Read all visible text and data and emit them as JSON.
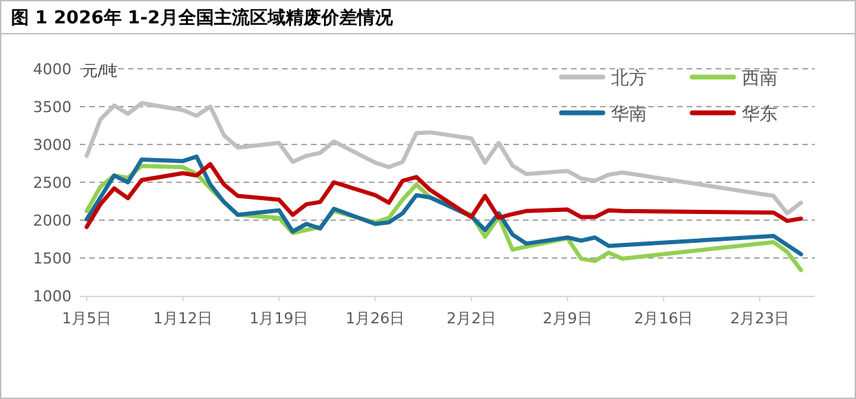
{
  "chart_data": {
    "type": "line",
    "title": "图 1 2026年 1-2月全国主流区域精废价差情况",
    "ylabel": "元/吨",
    "x": [
      "2026-01-05",
      "2026-01-06",
      "2026-01-07",
      "2026-01-08",
      "2026-01-09",
      "2026-01-12",
      "2026-01-13",
      "2026-01-14",
      "2026-01-15",
      "2026-01-16",
      "2026-01-19",
      "2026-01-20",
      "2026-01-21",
      "2026-01-22",
      "2026-01-23",
      "2026-01-26",
      "2026-01-27",
      "2026-01-28",
      "2026-01-29",
      "2026-01-30",
      "2026-02-02",
      "2026-02-03",
      "2026-02-04",
      "2026-02-05",
      "2026-02-06",
      "2026-02-09",
      "2026-02-10",
      "2026-02-11",
      "2026-02-12",
      "2026-02-13",
      "2026-02-24",
      "2026-02-25",
      "2026-02-26"
    ],
    "series": [
      {
        "name": "北方",
        "color": "#bfbfbf",
        "values": [
          2850,
          3330,
          3515,
          3405,
          3545,
          3455,
          3380,
          3500,
          3120,
          2960,
          3020,
          2770,
          2850,
          2890,
          3040,
          2760,
          2700,
          2770,
          3150,
          3160,
          3080,
          2760,
          3020,
          2720,
          2610,
          2650,
          2550,
          2520,
          2600,
          2630,
          2320,
          2090,
          2230
        ]
      },
      {
        "name": "西南",
        "color": "#92d050",
        "values": [
          2120,
          2440,
          2590,
          2560,
          2715,
          2700,
          2610,
          2420,
          2240,
          2070,
          2030,
          1830,
          1870,
          1910,
          2120,
          1970,
          2030,
          2270,
          2470,
          2300,
          2070,
          1780,
          2040,
          1610,
          1650,
          1760,
          1490,
          1460,
          1570,
          1490,
          1710,
          1580,
          1340
        ]
      },
      {
        "name": "华南",
        "color": "#1a6c9c",
        "values": [
          2010,
          2300,
          2590,
          2500,
          2800,
          2780,
          2840,
          2470,
          2240,
          2070,
          2130,
          1850,
          1950,
          1890,
          2150,
          1950,
          1970,
          2090,
          2330,
          2300,
          2050,
          1870,
          2090,
          1810,
          1690,
          1770,
          1730,
          1770,
          1660,
          1670,
          1790,
          1670,
          1550
        ]
      },
      {
        "name": "华东",
        "color": "#c00000",
        "values": [
          1910,
          2210,
          2420,
          2290,
          2530,
          2620,
          2590,
          2740,
          2470,
          2320,
          2270,
          2070,
          2210,
          2240,
          2500,
          2330,
          2230,
          2520,
          2570,
          2400,
          2040,
          2320,
          2030,
          2080,
          2120,
          2140,
          2040,
          2040,
          2130,
          2120,
          2100,
          1990,
          2020
        ]
      }
    ],
    "xlim": [
      "2026-01-04T12:00",
      "2026-02-27"
    ],
    "xticks": [
      {
        "value": "2026-01-05",
        "label": "1月5日"
      },
      {
        "value": "2026-01-12",
        "label": "1月12日"
      },
      {
        "value": "2026-01-19",
        "label": "1月19日"
      },
      {
        "value": "2026-01-26",
        "label": "1月26日"
      },
      {
        "value": "2026-02-02",
        "label": "2月2日"
      },
      {
        "value": "2026-02-09",
        "label": "2月9日"
      },
      {
        "value": "2026-02-16",
        "label": "2月16日"
      },
      {
        "value": "2026-02-23",
        "label": "2月23日"
      }
    ],
    "ylim": [
      1000,
      4000
    ],
    "yticks": [
      1000,
      1500,
      2000,
      2500,
      3000,
      3500,
      4000
    ],
    "grid": "y",
    "legend": "top right",
    "marker": "none",
    "line_style": "solid"
  }
}
